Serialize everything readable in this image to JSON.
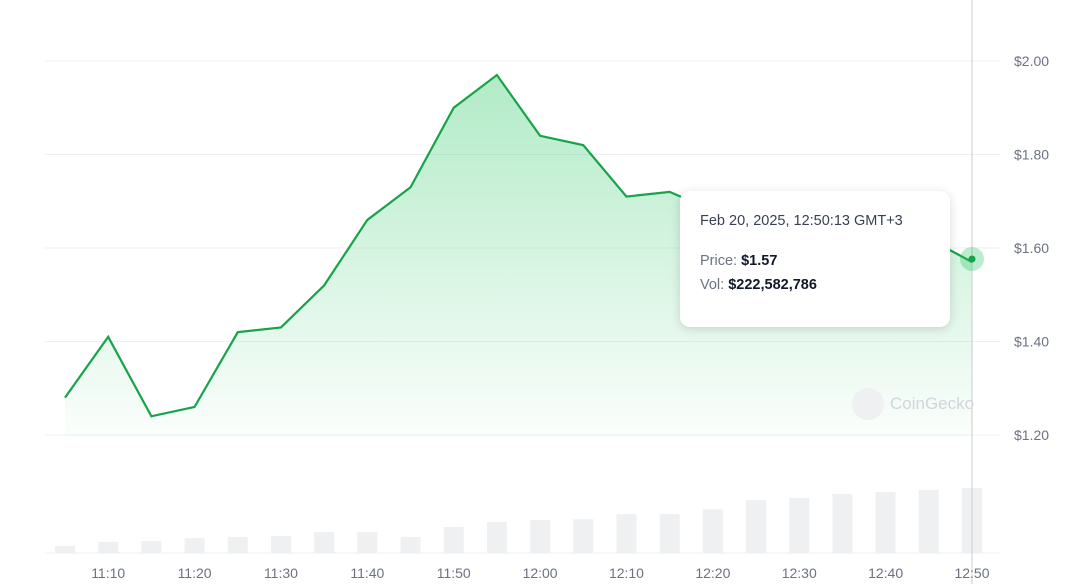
{
  "chart_data": {
    "type": "line",
    "x": [
      "11:05",
      "11:10",
      "11:15",
      "11:20",
      "11:25",
      "11:30",
      "11:35",
      "11:40",
      "11:45",
      "11:50",
      "11:55",
      "12:00",
      "12:05",
      "12:10",
      "12:15",
      "12:20",
      "12:25",
      "12:30",
      "12:35",
      "12:40",
      "12:45",
      "12:50"
    ],
    "price": [
      1.28,
      1.41,
      1.24,
      1.26,
      1.42,
      1.43,
      1.52,
      1.66,
      1.73,
      1.9,
      1.97,
      1.84,
      1.82,
      1.71,
      1.72,
      1.68,
      1.66,
      1.64,
      1.65,
      1.63,
      1.62,
      1.57
    ],
    "volume_millions": [
      24,
      38,
      41,
      51,
      55,
      58,
      72,
      72,
      55,
      89,
      106,
      113,
      116,
      133,
      133,
      150,
      181,
      188,
      202,
      209,
      216,
      222.6
    ],
    "yticks": [
      "$1.20",
      "$1.40",
      "$1.60",
      "$1.80",
      "$2.00"
    ],
    "ytick_values": [
      1.2,
      1.4,
      1.6,
      1.8,
      2.0
    ],
    "xticks": [
      "11:10",
      "11:20",
      "11:30",
      "11:40",
      "11:50",
      "12:00",
      "12:10",
      "12:20",
      "12:30",
      "12:40",
      "12:50"
    ],
    "ylim": [
      1.2,
      2.0
    ],
    "grid": true,
    "line_color": "#16a34a",
    "fill_color": "#22c55e",
    "volume_color": "#eef0f2"
  },
  "tooltip": {
    "date": "Feb 20, 2025, 12:50:13 GMT+3",
    "price_label": "Price:",
    "price_value": "$1.57",
    "vol_label": "Vol:",
    "vol_value": "$222,582,786"
  },
  "watermark": "CoinGecko"
}
